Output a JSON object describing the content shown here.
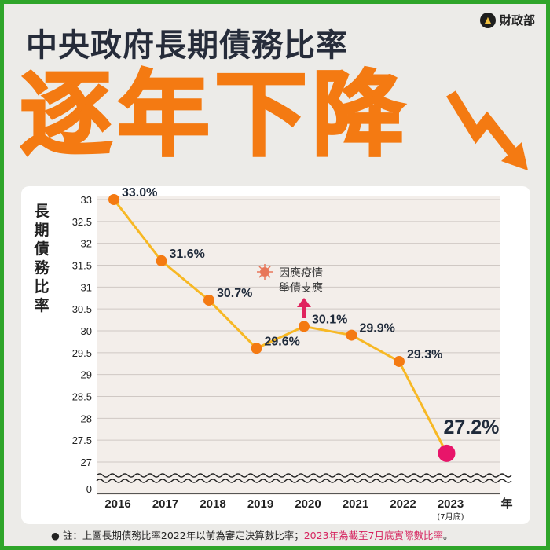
{
  "header": {
    "logo_text": "財政部",
    "title": "中央政府長期債務比率",
    "headline": "逐年下降"
  },
  "colors": {
    "frame": "#2fa52a",
    "headline": "#f47a12",
    "line": "#f7b824",
    "marker": "#f47a12",
    "last_marker": "#e8156a",
    "annotation_arrow": "#e0245e"
  },
  "chart_data": {
    "type": "line",
    "title": "",
    "ylabel": "長期債務比率",
    "xlabel": "年",
    "ylim": [
      27,
      33
    ],
    "y_axis_break": true,
    "yticks": [
      "0",
      "27",
      "27.5",
      "28",
      "28.5",
      "29",
      "29.5",
      "30",
      "30.5",
      "31",
      "31.5",
      "32",
      "32.5",
      "33"
    ],
    "categories": [
      "2016",
      "2017",
      "2018",
      "2019",
      "2020",
      "2021",
      "2022",
      "2023"
    ],
    "category_sublabels": [
      "",
      "",
      "",
      "",
      "",
      "",
      "",
      "(7月底)"
    ],
    "series": [
      {
        "values": [
          33.0,
          31.6,
          30.7,
          29.6,
          30.1,
          29.9,
          29.3,
          27.2
        ],
        "labels": [
          "33.0%",
          "31.6%",
          "30.7%",
          "29.6%",
          "30.1%",
          "29.9%",
          "29.3%",
          "27.2%"
        ]
      }
    ],
    "grid": true,
    "annotation": {
      "category": "2020",
      "lines": [
        "因應疫情",
        "舉債支應"
      ],
      "icon": "virus-icon"
    }
  },
  "footnote": {
    "bullet": "●",
    "text": "註：上圖長期債務比率2022年以前為審定決算數比率；",
    "highlight": "2023年為截至7月底實際數比率",
    "end": "。"
  }
}
